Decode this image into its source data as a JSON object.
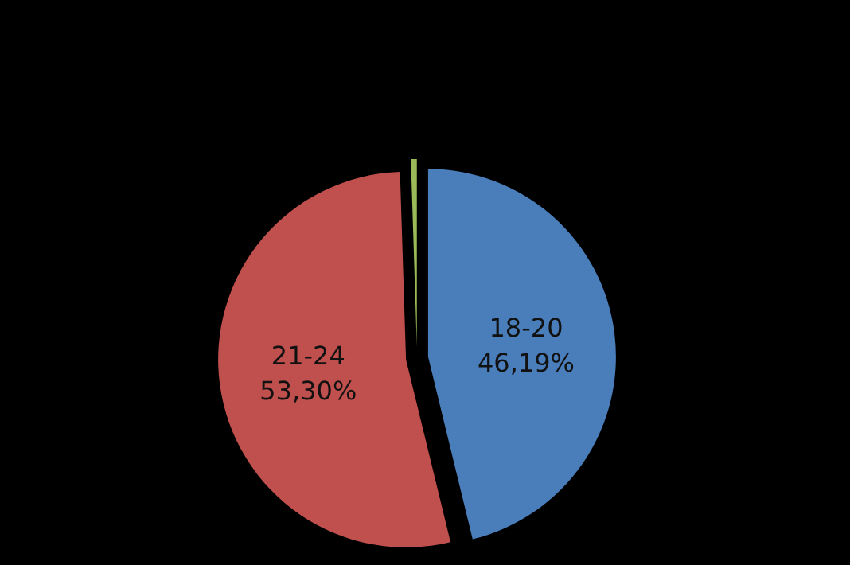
{
  "chart_data": {
    "type": "pie",
    "categories": [
      "18-20",
      "21-24",
      null
    ],
    "values": [
      46.19,
      53.3,
      0.51
    ],
    "colors": [
      "#4a7ebb",
      "#c0504d",
      "#9bbb59"
    ],
    "value_labels": [
      "46,19%",
      "53,30%",
      null
    ],
    "legend": false
  }
}
